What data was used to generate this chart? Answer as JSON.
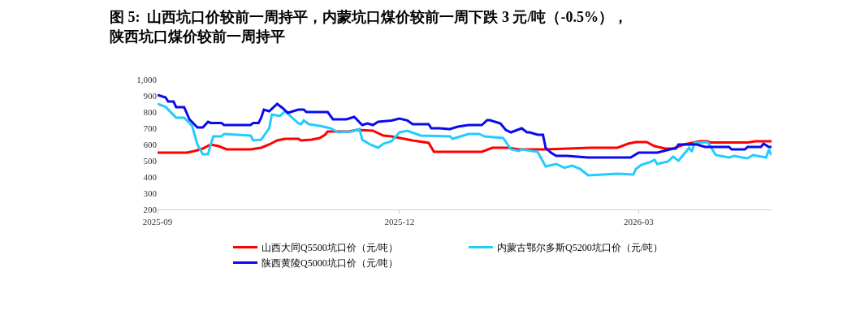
{
  "chart_data": {
    "type": "line",
    "title": "图 5:  山西坑口价较前一周持平，内蒙坑口煤价较前一周下跌 3 元/吨（-0.5%），陕西坑口煤价较前一周持平",
    "xlim": [
      "2025-09-01",
      "2026-04-20"
    ],
    "xticks": [
      {
        "value": "2025-09-01",
        "label": "2025-09"
      },
      {
        "value": "2025-12-01",
        "label": "2025-12"
      },
      {
        "value": "2026-03-01",
        "label": "2026-03"
      }
    ],
    "ylim": [
      200,
      1000
    ],
    "yticks": [
      200,
      300,
      400,
      500,
      600,
      700,
      800,
      900,
      {
        "value": 1000,
        "label": "1,000"
      }
    ],
    "legend": "bottom",
    "marker": "none",
    "line_style": "solid",
    "series": [
      {
        "name": "山西大同Q5500坑口价（元/吨）",
        "color": "#ff0000",
        "x": [
          "2025-09-01",
          "2025-09-12",
          "2025-09-15",
          "2025-09-18",
          "2025-09-21",
          "2025-09-24",
          "2025-09-27",
          "2025-10-06",
          "2025-10-10",
          "2025-10-13",
          "2025-10-16",
          "2025-10-19",
          "2025-10-24",
          "2025-10-25",
          "2025-10-29",
          "2025-11-01",
          "2025-11-03",
          "2025-11-04",
          "2025-11-12",
          "2025-11-15",
          "2025-11-21",
          "2025-11-25",
          "2025-11-28",
          "2025-12-06",
          "2025-12-12",
          "2025-12-14",
          "2026-01-01",
          "2026-01-05",
          "2026-01-11",
          "2026-01-15",
          "2026-01-25",
          "2026-02-11",
          "2026-02-21",
          "2026-02-25",
          "2026-02-28",
          "2026-03-04",
          "2026-03-07",
          "2026-03-11",
          "2026-03-14",
          "2026-03-18",
          "2026-03-24",
          "2026-03-27",
          "2026-03-28",
          "2026-04-11",
          "2026-04-14",
          "2026-04-20"
        ],
        "values": [
          550,
          550,
          560,
          575,
          600,
          590,
          570,
          570,
          580,
          600,
          625,
          635,
          635,
          625,
          630,
          640,
          660,
          680,
          680,
          690,
          685,
          655,
          650,
          625,
          610,
          555,
          555,
          580,
          580,
          570,
          570,
          580,
          580,
          605,
          615,
          615,
          590,
          575,
          575,
          600,
          620,
          620,
          612,
          612,
          620,
          620
        ]
      },
      {
        "name": "内蒙古鄂尔多斯Q5200坑口价（元/吨）",
        "color": "#22ccff",
        "x": [
          "2025-09-01",
          "2025-09-04",
          "2025-09-07",
          "2025-09-08",
          "2025-09-11",
          "2025-09-14",
          "2025-09-16",
          "2025-09-18",
          "2025-09-20",
          "2025-09-21",
          "2025-09-22",
          "2025-09-25",
          "2025-09-26",
          "2025-10-06",
          "2025-10-07",
          "2025-10-10",
          "2025-10-13",
          "2025-10-14",
          "2025-10-17",
          "2025-10-19",
          "2025-10-21",
          "2025-10-24",
          "2025-10-25",
          "2025-10-26",
          "2025-10-28",
          "2025-11-01",
          "2025-11-05",
          "2025-11-08",
          "2025-11-13",
          "2025-11-16",
          "2025-11-17",
          "2025-11-20",
          "2025-11-23",
          "2025-11-25",
          "2025-11-28",
          "2025-12-01",
          "2025-12-04",
          "2025-12-09",
          "2025-12-20",
          "2025-12-21",
          "2025-12-27",
          "2025-12-31",
          "2026-01-02",
          "2026-01-09",
          "2026-01-12",
          "2026-01-15",
          "2026-01-16",
          "2026-01-22",
          "2026-01-25",
          "2026-01-29",
          "2026-02-01",
          "2026-02-04",
          "2026-02-07",
          "2026-02-10",
          "2026-02-21",
          "2026-02-27",
          "2026-02-28",
          "2026-03-02",
          "2026-03-05",
          "2026-03-07",
          "2026-03-08",
          "2026-03-12",
          "2026-03-14",
          "2026-03-16",
          "2026-03-20",
          "2026-03-21",
          "2026-03-22",
          "2026-03-27",
          "2026-03-30",
          "2026-04-04",
          "2026-04-06",
          "2026-04-09",
          "2026-04-11",
          "2026-04-13",
          "2026-04-18",
          "2026-04-19",
          "2026-04-20"
        ],
        "values": [
          850,
          832,
          782,
          765,
          765,
          715,
          600,
          540,
          540,
          600,
          650,
          650,
          665,
          655,
          625,
          630,
          700,
          785,
          775,
          805,
          775,
          730,
          725,
          748,
          725,
          715,
          700,
          675,
          680,
          695,
          630,
          600,
          580,
          605,
          620,
          675,
          685,
          655,
          650,
          635,
          665,
          665,
          650,
          640,
          570,
          560,
          570,
          555,
          465,
          480,
          457,
          470,
          450,
          410,
          420,
          415,
          450,
          475,
          490,
          505,
          480,
          495,
          525,
          500,
          580,
          555,
          610,
          615,
          535,
          520,
          530,
          520,
          515,
          535,
          520,
          570,
          535
        ]
      },
      {
        "name": "陕西黄陵Q5000坑口价（元/吨）",
        "color": "#0a0aee",
        "x": [
          "2025-09-01",
          "2025-09-04",
          "2025-09-05",
          "2025-09-07",
          "2025-09-08",
          "2025-09-11",
          "2025-09-13",
          "2025-09-16",
          "2025-09-18",
          "2025-09-20",
          "2025-09-21",
          "2025-09-25",
          "2025-09-26",
          "2025-10-06",
          "2025-10-07",
          "2025-10-09",
          "2025-10-10",
          "2025-10-11",
          "2025-10-13",
          "2025-10-16",
          "2025-10-18",
          "2025-10-20",
          "2025-10-24",
          "2025-10-26",
          "2025-10-27",
          "2025-11-04",
          "2025-11-06",
          "2025-11-11",
          "2025-11-14",
          "2025-11-17",
          "2025-11-19",
          "2025-11-21",
          "2025-11-23",
          "2025-11-28",
          "2025-12-01",
          "2025-12-04",
          "2025-12-06",
          "2025-12-12",
          "2025-12-13",
          "2025-12-16",
          "2025-12-20",
          "2025-12-23",
          "2025-12-27",
          "2026-01-01",
          "2026-01-03",
          "2026-01-04",
          "2026-01-08",
          "2026-01-10",
          "2026-01-12",
          "2026-01-16",
          "2026-01-18",
          "2026-01-19",
          "2026-01-22",
          "2026-01-24",
          "2026-01-25",
          "2026-01-27",
          "2026-01-29",
          "2026-02-02",
          "2026-02-06",
          "2026-02-10",
          "2026-02-26",
          "2026-03-01",
          "2026-03-08",
          "2026-03-14",
          "2026-03-15",
          "2026-03-16",
          "2026-03-23",
          "2026-03-26",
          "2026-04-04",
          "2026-04-05",
          "2026-04-10",
          "2026-04-11",
          "2026-04-16",
          "2026-04-17",
          "2026-04-19",
          "2026-04-20"
        ],
        "values": [
          905,
          890,
          865,
          865,
          830,
          830,
          755,
          705,
          705,
          740,
          733,
          733,
          720,
          720,
          733,
          733,
          765,
          815,
          805,
          850,
          825,
          795,
          815,
          815,
          800,
          800,
          755,
          755,
          770,
          720,
          730,
          720,
          740,
          748,
          760,
          748,
          725,
          725,
          700,
          700,
          695,
          710,
          720,
          720,
          750,
          750,
          730,
          690,
          675,
          700,
          675,
          675,
          660,
          660,
          580,
          550,
          530,
          530,
          525,
          520,
          520,
          550,
          550,
          575,
          575,
          600,
          600,
          585,
          585,
          570,
          570,
          585,
          585,
          605,
          585,
          585
        ]
      }
    ]
  }
}
